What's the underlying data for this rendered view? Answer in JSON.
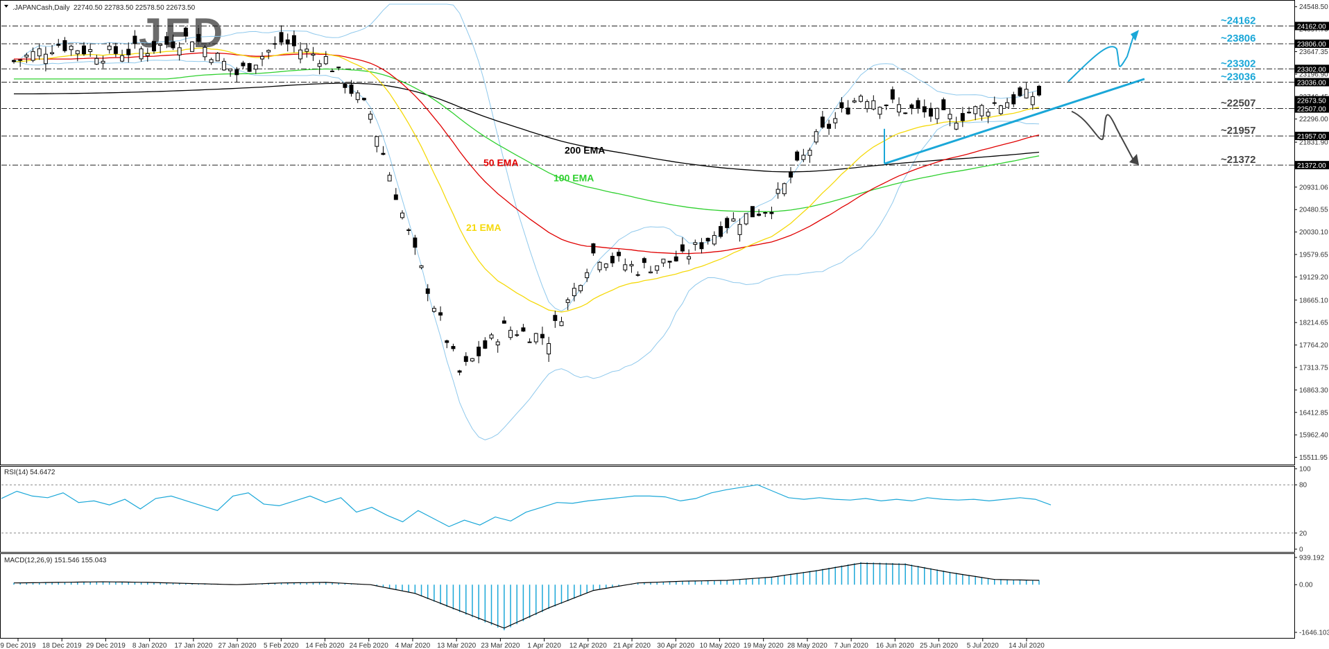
{
  "header": {
    "symbol": ".JAPANCash,Daily",
    "ohlc": "22740.50 22783.50 22578.50 22673.50",
    "logo": "JFD"
  },
  "colors": {
    "bull": "#ffffff",
    "bear": "#000000",
    "ema21": "#f5d90a",
    "ema50": "#e00000",
    "ema100": "#2fd02f",
    "ema200": "#000000",
    "bollinger": "#8ec8ec",
    "accent": "#1aa7d8",
    "price_box": "#000000"
  },
  "chart_data": [
    {
      "type": "candlestick",
      "name": "price",
      "dates": [
        "9 Dec 2019",
        "18 Dec 2019",
        "29 Dec 2019",
        "8 Jan 2020",
        "17 Jan 2020",
        "27 Jan 2020",
        "5 Feb 2020",
        "14 Feb 2020",
        "24 Feb 2020",
        "4 Mar 2020",
        "13 Mar 2020",
        "23 Mar 2020",
        "1 Apr 2020",
        "12 Apr 2020",
        "21 Apr 2020",
        "30 Apr 2020",
        "10 May 2020",
        "19 May 2020",
        "28 May 2020",
        "7 Jun 2020",
        "16 Jun 2020",
        "25 Jun 2020",
        "5 Jul 2020",
        "14 Jul 2020"
      ],
      "closes": [
        23450,
        23800,
        23600,
        23700,
        23950,
        23200,
        23850,
        23500,
        22400,
        19600,
        17200,
        18100,
        17900,
        19600,
        19300,
        19500,
        20200,
        20550,
        21900,
        22800,
        22500,
        22300,
        22600,
        22800
      ],
      "y_ticks": [
        "24548.50",
        "24097.70",
        "23647.35",
        "23196.90",
        "22746.45",
        "22296.00",
        "21831.90",
        "21381.55",
        "20931.06",
        "20480.55",
        "20030.10",
        "19579.65",
        "19129.20",
        "18665.10",
        "18214.65",
        "17764.20",
        "17313.75",
        "16863.30",
        "16412.85",
        "15962.40",
        "15511.95"
      ],
      "y_range": [
        15450,
        24600
      ],
      "indicators": [
        {
          "name": "21 EMA",
          "color": "#f5d90a"
        },
        {
          "name": "50 EMA",
          "color": "#e00000"
        },
        {
          "name": "100 EMA",
          "color": "#2fd02f"
        },
        {
          "name": "200 EMA",
          "color": "#000000"
        }
      ],
      "levels": [
        {
          "label": "~24162",
          "value": 24162,
          "box": "24162.00",
          "color": "#1aa7d8"
        },
        {
          "label": "~23806",
          "value": 23806,
          "box": "23806.00",
          "color": "#1aa7d8"
        },
        {
          "label": "~23302",
          "value": 23302,
          "box": "23302.00",
          "color": "#1aa7d8"
        },
        {
          "label": "~23036",
          "value": 23036,
          "box": "23036.00",
          "color": "#1aa7d8"
        },
        {
          "label": "~22507",
          "value": 22507,
          "box": "22507.00",
          "color": "#444444"
        },
        {
          "label": "~21957",
          "value": 21957,
          "box": "21957.00",
          "color": "#444444"
        },
        {
          "label": "~21372",
          "value": 21372,
          "box": "21372.00",
          "color": "#444444"
        }
      ],
      "current_price_box": "22673.50"
    },
    {
      "type": "line",
      "name": "RSI(14) 54.6472",
      "y_ticks": [
        "100",
        "80",
        "20",
        "0"
      ],
      "y_range": [
        0,
        100
      ],
      "values": [
        63,
        72,
        66,
        64,
        70,
        58,
        60,
        55,
        62,
        50,
        63,
        66,
        60,
        54,
        48,
        66,
        70,
        56,
        54,
        60,
        66,
        58,
        64,
        46,
        52,
        42,
        34,
        48,
        38,
        28,
        36,
        30,
        40,
        35,
        46,
        52,
        58,
        57,
        60,
        62,
        64,
        66,
        66,
        65,
        60,
        63,
        70,
        74,
        77,
        80,
        72,
        64,
        62,
        64,
        62,
        61,
        63,
        60,
        62,
        60,
        64,
        62,
        61,
        62,
        60,
        62,
        64,
        62,
        55
      ]
    },
    {
      "type": "bar",
      "name": "MACD(12,26,9) 151.546 155.043",
      "y_ticks": [
        "939.192",
        "0.00",
        "-1646.103"
      ],
      "y_range": [
        -1646.103,
        939.192
      ],
      "signal": [
        60,
        80,
        100,
        80,
        40,
        0,
        60,
        80,
        0,
        -300,
        -900,
        -1500,
        -800,
        -200,
        60,
        120,
        150,
        260,
        480,
        740,
        700,
        420,
        180,
        150
      ]
    }
  ],
  "annotations": [
    {
      "text": "21 EMA",
      "color": "#f5d90a"
    },
    {
      "text": "50 EMA",
      "color": "#e00000"
    },
    {
      "text": "100 EMA",
      "color": "#2fd02f"
    },
    {
      "text": "200 EMA",
      "color": "#000000"
    }
  ]
}
